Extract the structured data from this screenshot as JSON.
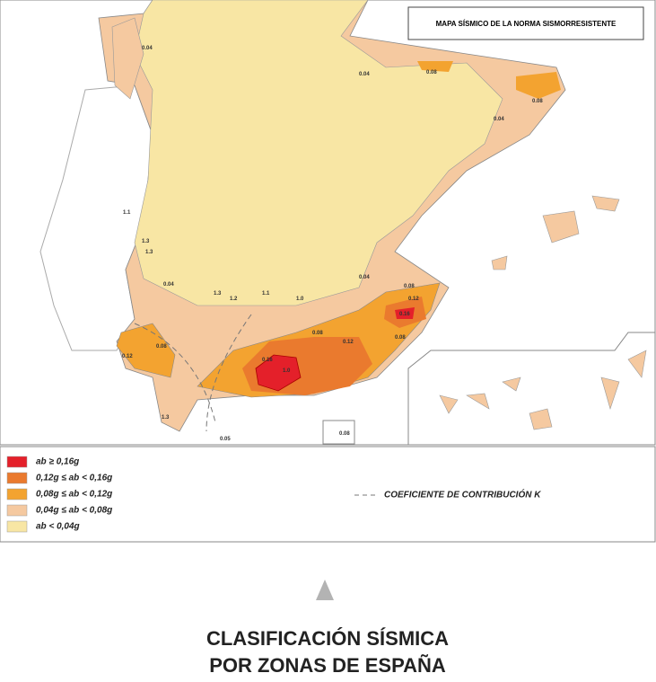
{
  "map": {
    "title": "MAPA SÍSMICO DE LA NORMA SISMORRESISTENTE",
    "labels": [
      "0.04",
      "0.04",
      "0.08",
      "0.08",
      "0.04",
      "1.1",
      "1.3",
      "1.3",
      "0.04",
      "1.3",
      "1.2",
      "1.1",
      "1.0",
      "0.04",
      "0.08",
      "0.12",
      "0.16",
      "0.08",
      "0.12",
      "0.16",
      "1.0",
      "0.08",
      "0.12",
      "0.08",
      "1.3",
      "0.05",
      "0.08"
    ]
  },
  "legend": {
    "items": [
      {
        "label": "ab ≥ 0,16g",
        "color": "#e4202a"
      },
      {
        "label": "0,12g ≤ ab < 0,16g",
        "color": "#ea7a2e"
      },
      {
        "label": "0,08g ≤ ab < 0,12g",
        "color": "#f3a330"
      },
      {
        "label": "0,04g ≤ ab < 0,08g",
        "color": "#f5c9a0"
      },
      {
        "label": "ab < 0,04g",
        "color": "#f8e6a4"
      }
    ],
    "k_label": "COEFICIENTE DE CONTRIBUCIÓN K"
  },
  "caption": {
    "lines": [
      "CLASIFICACIÓN SÍSMICA",
      "POR ZONAS DE ESPAÑA"
    ]
  }
}
